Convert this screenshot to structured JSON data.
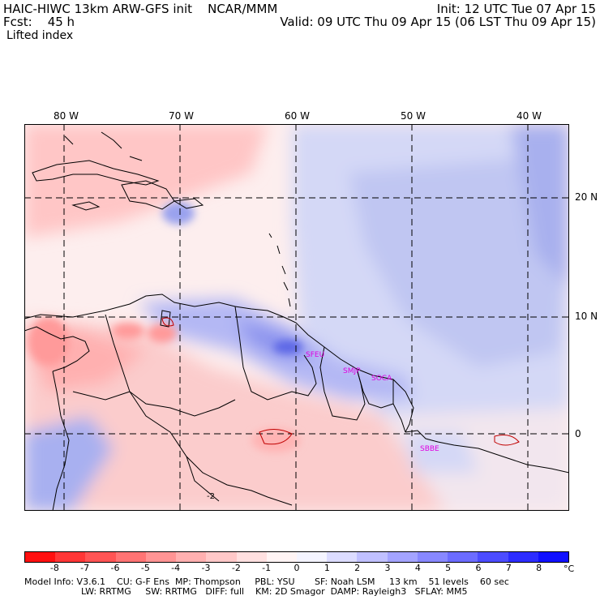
{
  "header": {
    "model_line": "HAIC-HIWC 13km ARW-GFS init    NCAR/MMM",
    "forecast_line": "Fcst:    45 h",
    "field_name": "Lifted index",
    "init_line": "Init: 12 UTC Tue 07 Apr 15",
    "valid_line": "Valid: 09 UTC Thu 09 Apr 15 (06 LST Thu 09 Apr 15)"
  },
  "map": {
    "lon_labels": [
      "80 W",
      "70 W",
      "60 W",
      "50 W",
      "40 W"
    ],
    "lat_labels": [
      "20 N",
      "10 N",
      "0"
    ],
    "station_labels": [
      "SFEU",
      "SMJP",
      "SOCA",
      "SBBE"
    ],
    "contour_label": "-2",
    "station_color": "#e000e0"
  },
  "colorbar": {
    "ticks": [
      "-8",
      "-7",
      "-6",
      "-5",
      "-4",
      "-3",
      "-2",
      "-1",
      "0",
      "1",
      "2",
      "3",
      "4",
      "5",
      "6",
      "7",
      "8"
    ],
    "unit": "°C",
    "colors": [
      "#ff1010",
      "#ff3636",
      "#ff5454",
      "#ff7474",
      "#ff9494",
      "#ffb0b0",
      "#ffc8c8",
      "#ffe0e0",
      "#fff4f4",
      "#f4f4ff",
      "#dcdcff",
      "#c0c0ff",
      "#a4a4ff",
      "#8888ff",
      "#6c6cff",
      "#4c4cff",
      "#2c2cff",
      "#1010ff"
    ]
  },
  "footer": {
    "line1": "Model Info: V3.6.1    CU: G-F Ens  MP: Thompson     PBL: YSU       SF: Noah LSM     13 km    51 levels    60 sec",
    "line2": "LW: RRTMG     SW: RRTMG   DIFF: full    KM: 2D Smagor  DAMP: Rayleigh3   SFLAY: MM5"
  }
}
